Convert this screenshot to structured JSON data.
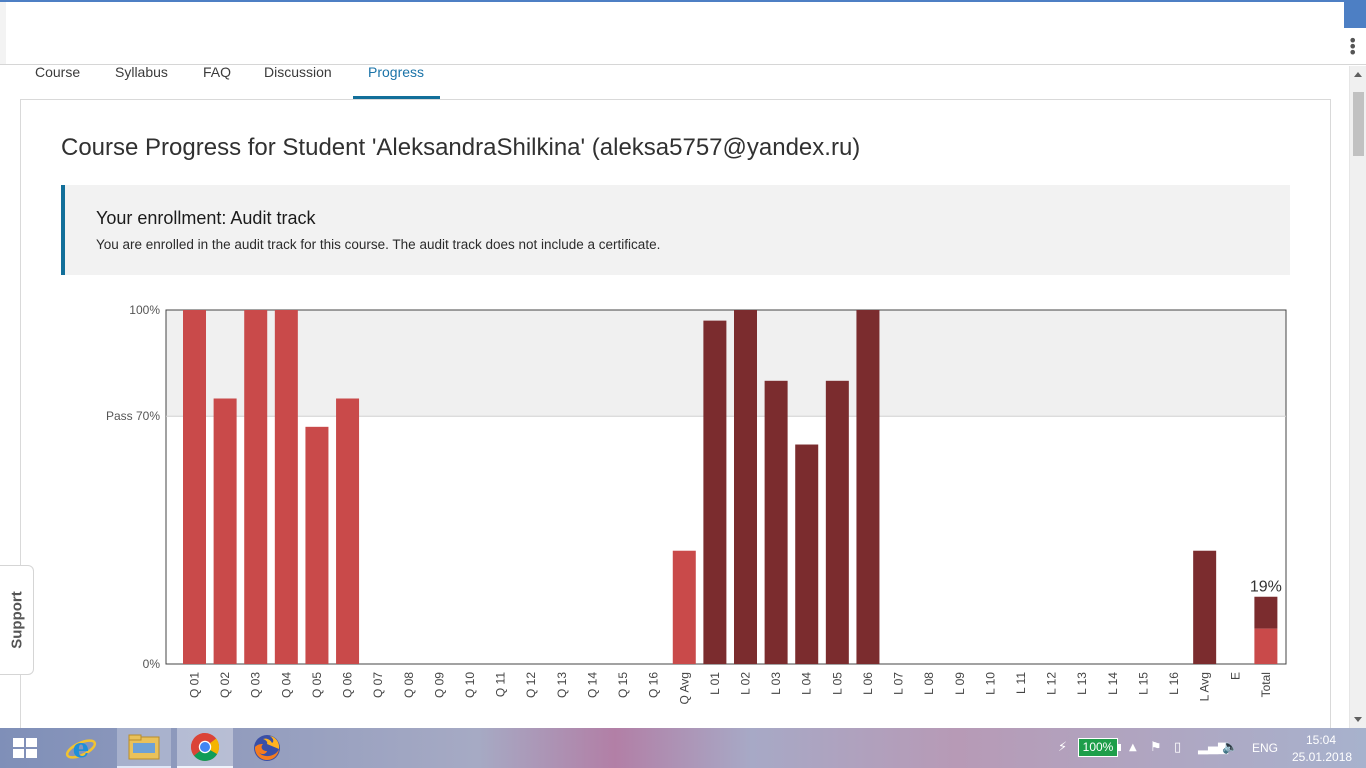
{
  "browser": {
    "menu_icon": "kebab-menu-icon"
  },
  "tabs": [
    {
      "label": "Course"
    },
    {
      "label": "Syllabus"
    },
    {
      "label": "FAQ"
    },
    {
      "label": "Discussion"
    },
    {
      "label": "Progress"
    }
  ],
  "page": {
    "title": "Course Progress for Student 'AleksandraShilkina' (aleksa5757@yandex.ru)",
    "enrollment_title": "Your enrollment: Audit track",
    "enrollment_text": "You are enrolled in the audit track for this course. The audit track does not include a certificate."
  },
  "support": {
    "label": "Support"
  },
  "colors": {
    "quiz_bar": "#c94a4a",
    "lab_bar": "#7b2c2e",
    "pass_band": "#f0f0f0",
    "accent": "#126f9a"
  },
  "chart_data": {
    "type": "bar",
    "y_ticks": [
      "0%",
      "Pass 70%",
      "100%"
    ],
    "ylim": [
      0,
      100
    ],
    "pass_threshold": 70,
    "categories": [
      "Q 01",
      "Q 02",
      "Q 03",
      "Q 04",
      "Q 05",
      "Q 06",
      "Q 07",
      "Q 08",
      "Q 09",
      "Q 10",
      "Q 11",
      "Q 12",
      "Q 13",
      "Q 14",
      "Q 15",
      "Q 16",
      "Q Avg",
      "L 01",
      "L 02",
      "L 03",
      "L 04",
      "L 05",
      "L 06",
      "L 07",
      "L 08",
      "L 09",
      "L 10",
      "L 11",
      "L 12",
      "L 13",
      "L 14",
      "L 15",
      "L 16",
      "L Avg",
      "E",
      "Total"
    ],
    "values": [
      100,
      75,
      100,
      100,
      67,
      75,
      0,
      0,
      0,
      0,
      0,
      0,
      0,
      0,
      0,
      0,
      32,
      97,
      100,
      80,
      62,
      80,
      100,
      0,
      0,
      0,
      0,
      0,
      0,
      0,
      0,
      0,
      0,
      32,
      0,
      19
    ],
    "series_kind": [
      "quiz",
      "quiz",
      "quiz",
      "quiz",
      "quiz",
      "quiz",
      "quiz",
      "quiz",
      "quiz",
      "quiz",
      "quiz",
      "quiz",
      "quiz",
      "quiz",
      "quiz",
      "quiz",
      "quiz",
      "lab",
      "lab",
      "lab",
      "lab",
      "lab",
      "lab",
      "lab",
      "lab",
      "lab",
      "lab",
      "lab",
      "lab",
      "lab",
      "lab",
      "lab",
      "lab",
      "lab",
      "exam",
      "total"
    ],
    "total": {
      "label": "19%",
      "quiz_part": 10,
      "lab_part": 9
    }
  },
  "taskbar": {
    "battery": "100%",
    "language": "ENG",
    "time": "15:04",
    "date": "25.01.2018"
  }
}
